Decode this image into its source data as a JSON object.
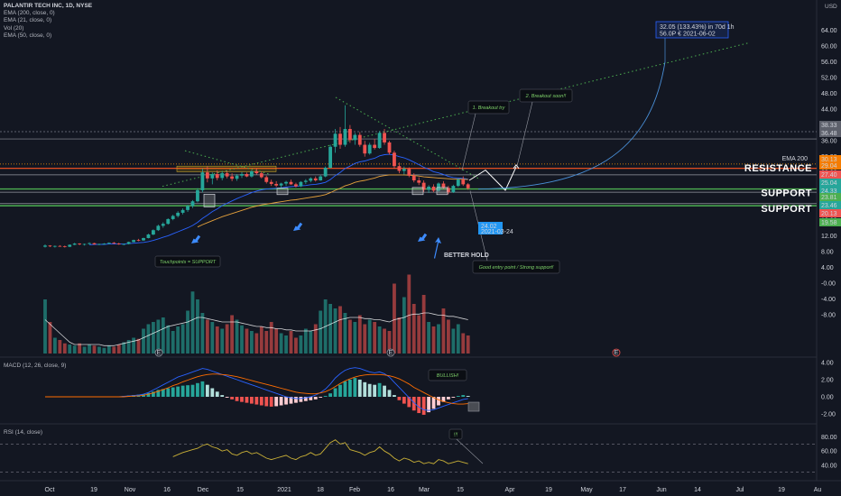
{
  "legend": {
    "title": "PALANTIR TECH INC, 1D, NYSE",
    "lines": [
      "EMA (200, close, 0)",
      "EMA (21, close, 0)",
      "Vol (20)",
      "EMA (50, close, 0)"
    ]
  },
  "currency": "USD",
  "macd_title": "MACD (12, 26, close, 9)",
  "rsi_title": "RSI (14, close)",
  "colors": {
    "up": "#26a69a",
    "down": "#ef5350",
    "bg": "#131722",
    "support": "#4caf50",
    "resistance": "#ff5722",
    "projection": "#4a90d9"
  },
  "chart_data": [
    {
      "type": "candlestick",
      "pane": "price",
      "y_ticks": [
        64.0,
        60.0,
        56.0,
        52.0,
        48.0,
        44.0,
        40.0,
        36.0,
        32.0,
        28.0,
        24.0,
        20.0,
        16.0,
        12.0,
        8.0,
        4.0,
        "-0.00",
        "-4.00",
        "-8.00"
      ],
      "x_ticks": [
        "Oct",
        "19",
        "Nov",
        "16",
        "Dec",
        "15",
        "2021",
        "18",
        "Feb",
        "16",
        "Mar",
        "15",
        "Apr",
        "19",
        "May",
        "17",
        "Jun",
        "14",
        "Jul",
        "19",
        "Au"
      ],
      "price_tags": [
        {
          "value": "38.33",
          "color": "#5d606b"
        },
        {
          "value": "36.48",
          "color": "#5d606b"
        },
        {
          "value": "30.13",
          "color": "#f57c00"
        },
        {
          "value": "29.04",
          "color": "#f57c00"
        },
        {
          "value": "27.40",
          "color": "#ef5350"
        },
        {
          "value": "25.04",
          "color": "#26a69a"
        },
        {
          "value": "24.33",
          "color": "#26a69a"
        },
        {
          "value": "23.81",
          "color": "#4caf50"
        },
        {
          "value": "23.46",
          "color": "#26a69a"
        },
        {
          "value": "20.13",
          "color": "#ef5350"
        },
        {
          "value": "19.58",
          "color": "#4caf50"
        }
      ],
      "zone_labels": {
        "resistance": "RESISTANCE",
        "support1": "SUPPORT",
        "support2": "SUPPORT"
      },
      "annotations": {
        "touchpoints": "Touchpoints = SUPPORT",
        "breakout1": "1. Breakout try",
        "breakout2": "2. Breakout soon!!",
        "good_entry": "Good entry point / Strong support!",
        "better_hold": "BETTER HOLD",
        "ema_badge": "EMA 200",
        "target_line1": "32.05 (133.43%) in 70d 1h",
        "target_line2": "56.0P € 2021-06-02",
        "current_price": "24.02",
        "current_date": "2021-03-24",
        "earnings": "E"
      },
      "candles": [
        [
          9.2,
          9.8,
          9.0,
          9.5
        ],
        [
          9.5,
          9.6,
          9.1,
          9.3
        ],
        [
          9.3,
          9.5,
          9.0,
          9.4
        ],
        [
          9.4,
          9.6,
          9.2,
          9.3
        ],
        [
          9.3,
          9.5,
          9.0,
          9.2
        ],
        [
          9.2,
          9.8,
          9.1,
          9.7
        ],
        [
          9.7,
          10.2,
          9.6,
          10.0
        ],
        [
          10.0,
          10.1,
          9.6,
          9.8
        ],
        [
          9.8,
          10.0,
          9.5,
          9.9
        ],
        [
          9.9,
          10.3,
          9.8,
          10.1
        ],
        [
          10.1,
          10.2,
          9.7,
          9.8
        ],
        [
          9.8,
          10.0,
          9.6,
          9.9
        ],
        [
          9.9,
          10.1,
          9.7,
          10.0
        ],
        [
          10.0,
          10.3,
          9.8,
          10.2
        ],
        [
          10.2,
          10.4,
          9.9,
          10.0
        ],
        [
          10.0,
          10.2,
          9.7,
          9.8
        ],
        [
          9.8,
          10.0,
          9.6,
          9.9
        ],
        [
          9.9,
          10.5,
          9.8,
          10.4
        ],
        [
          10.4,
          11.0,
          10.3,
          10.9
        ],
        [
          10.9,
          11.2,
          10.6,
          10.8
        ],
        [
          10.8,
          11.5,
          10.7,
          11.4
        ],
        [
          11.4,
          12.5,
          11.3,
          12.3
        ],
        [
          12.3,
          13.6,
          12.1,
          13.4
        ],
        [
          13.4,
          14.8,
          13.2,
          14.5
        ],
        [
          14.5,
          15.4,
          14.0,
          15.0
        ],
        [
          15.0,
          16.4,
          14.8,
          16.2
        ],
        [
          16.2,
          17.3,
          15.9,
          17.0
        ],
        [
          17.0,
          18.2,
          16.6,
          17.8
        ],
        [
          17.8,
          18.9,
          17.4,
          18.5
        ],
        [
          18.5,
          19.8,
          18.0,
          19.5
        ],
        [
          19.5,
          21.0,
          19.0,
          20.7
        ],
        [
          20.7,
          24.0,
          20.4,
          23.5
        ],
        [
          23.5,
          29.0,
          23.0,
          28.0
        ],
        [
          28.0,
          29.5,
          25.5,
          26.5
        ],
        [
          26.5,
          28.0,
          25.0,
          27.6
        ],
        [
          27.6,
          28.5,
          26.0,
          26.6
        ],
        [
          26.6,
          28.2,
          26.0,
          27.8
        ],
        [
          27.8,
          28.4,
          26.5,
          27.0
        ],
        [
          27.0,
          27.8,
          25.8,
          26.4
        ],
        [
          26.4,
          27.6,
          25.9,
          27.2
        ],
        [
          27.2,
          28.1,
          26.6,
          27.6
        ],
        [
          27.6,
          28.0,
          26.8,
          27.0
        ],
        [
          27.0,
          28.6,
          26.7,
          28.3
        ],
        [
          28.3,
          29.0,
          27.5,
          27.8
        ],
        [
          27.8,
          28.2,
          26.5,
          26.8
        ],
        [
          26.8,
          27.2,
          25.2,
          25.6
        ],
        [
          25.6,
          26.2,
          24.6,
          25.1
        ],
        [
          25.1,
          25.8,
          24.3,
          24.7
        ],
        [
          24.7,
          25.4,
          24.0,
          25.2
        ],
        [
          25.2,
          25.9,
          24.6,
          25.6
        ],
        [
          25.6,
          26.2,
          24.9,
          25.0
        ],
        [
          25.0,
          25.4,
          24.2,
          24.5
        ],
        [
          24.5,
          25.8,
          24.3,
          25.6
        ],
        [
          25.6,
          26.3,
          25.1,
          25.9
        ],
        [
          25.9,
          26.8,
          25.5,
          26.5
        ],
        [
          26.5,
          27.0,
          25.7,
          26.0
        ],
        [
          26.0,
          27.4,
          25.9,
          27.0
        ],
        [
          27.0,
          29.5,
          26.8,
          29.2
        ],
        [
          29.2,
          35.0,
          29.0,
          34.5
        ],
        [
          34.5,
          39.0,
          33.0,
          37.8
        ],
        [
          37.8,
          39.5,
          34.0,
          35.0
        ],
        [
          35.0,
          45.0,
          34.5,
          39.0
        ],
        [
          39.0,
          40.0,
          35.5,
          36.2
        ],
        [
          36.2,
          38.0,
          35.0,
          37.5
        ],
        [
          37.5,
          38.2,
          34.5,
          35.0
        ],
        [
          35.0,
          36.0,
          32.0,
          32.8
        ],
        [
          32.8,
          35.5,
          32.5,
          35.0
        ],
        [
          35.0,
          36.5,
          33.8,
          34.2
        ],
        [
          34.2,
          38.5,
          34.0,
          38.0
        ],
        [
          38.0,
          39.0,
          35.0,
          35.6
        ],
        [
          35.6,
          36.0,
          32.5,
          33.0
        ],
        [
          33.0,
          33.5,
          29.0,
          29.6
        ],
        [
          29.6,
          30.5,
          27.8,
          28.4
        ],
        [
          28.4,
          29.5,
          27.5,
          28.9
        ],
        [
          28.9,
          29.3,
          26.8,
          27.2
        ],
        [
          27.2,
          27.8,
          25.5,
          26.0
        ],
        [
          26.0,
          26.8,
          24.8,
          25.4
        ],
        [
          25.4,
          26.0,
          23.0,
          23.6
        ],
        [
          23.6,
          24.8,
          22.8,
          24.4
        ],
        [
          24.4,
          25.0,
          23.0,
          23.4
        ],
        [
          23.4,
          25.5,
          23.1,
          25.2
        ],
        [
          25.2,
          25.8,
          23.8,
          24.1
        ],
        [
          24.1,
          24.6,
          22.5,
          23.0
        ],
        [
          23.0,
          24.9,
          22.8,
          24.6
        ],
        [
          24.6,
          26.5,
          24.3,
          26.2
        ],
        [
          26.2,
          27.0,
          24.6,
          25.0
        ],
        [
          25.0,
          25.3,
          23.6,
          24.0
        ]
      ],
      "volume": [
        48,
        28,
        14,
        12,
        9,
        8,
        7,
        9,
        6,
        8,
        7,
        6,
        5,
        7,
        6,
        8,
        10,
        12,
        14,
        13,
        22,
        26,
        28,
        30,
        32,
        25,
        20,
        24,
        26,
        38,
        55,
        48,
        36,
        30,
        28,
        24,
        22,
        26,
        34,
        30,
        25,
        22,
        20,
        18,
        24,
        20,
        28,
        22,
        18,
        16,
        20,
        14,
        16,
        22,
        20,
        26,
        38,
        48,
        44,
        40,
        42,
        36,
        30,
        28,
        34,
        26,
        30,
        28,
        24,
        22,
        20,
        62,
        32,
        50,
        70,
        44,
        34,
        52,
        28,
        24,
        26,
        40,
        30,
        22,
        26,
        18,
        16
      ],
      "volume_ma": [
        30,
        26,
        22,
        18,
        14,
        10,
        8,
        8,
        8,
        8,
        8,
        8,
        7,
        7,
        7,
        8,
        9,
        10,
        11,
        12,
        14,
        16,
        18,
        20,
        22,
        24,
        25,
        26,
        27,
        28,
        30,
        32,
        32,
        31,
        30,
        29,
        28,
        28,
        28,
        28,
        27,
        26,
        25,
        24,
        24,
        23,
        23,
        22,
        22,
        21,
        21,
        20,
        20,
        20,
        20,
        21,
        22,
        24,
        26,
        28,
        30,
        31,
        32,
        32,
        32,
        31,
        31,
        30,
        30,
        29,
        28,
        30,
        31,
        32,
        34,
        35,
        35,
        36,
        36,
        35,
        34,
        34,
        33,
        33,
        32,
        31,
        30
      ],
      "ema21": [
        null,
        null,
        null,
        null,
        null,
        null,
        null,
        null,
        null,
        9.7,
        9.8,
        9.8,
        9.8,
        9.9,
        9.9,
        9.9,
        9.9,
        10.0,
        10.1,
        10.2,
        10.3,
        10.5,
        10.8,
        11.2,
        11.6,
        12.0,
        12.5,
        13.0,
        13.5,
        14.0,
        14.6,
        15.4,
        16.4,
        17.2,
        18.1,
        18.8,
        19.6,
        20.2,
        20.8,
        21.4,
        21.9,
        22.4,
        22.9,
        23.3,
        23.6,
        23.8,
        23.9,
        24.0,
        24.1,
        24.3,
        24.4,
        24.5,
        24.6,
        24.7,
        24.9,
        25.0,
        25.2,
        25.5,
        26.2,
        27.2,
        28.0,
        29.0,
        29.6,
        30.3,
        30.7,
        30.9,
        31.3,
        31.6,
        32.2,
        32.5,
        32.6,
        32.4,
        32.0,
        31.7,
        31.2,
        30.6,
        30.0,
        29.3,
        28.8,
        28.2,
        27.9,
        27.5,
        27.0,
        26.7,
        26.6,
        26.5,
        26.3
      ],
      "ema50": [
        null,
        null,
        null,
        null,
        null,
        null,
        null,
        null,
        null,
        null,
        null,
        null,
        null,
        null,
        null,
        null,
        null,
        null,
        null,
        null,
        null,
        null,
        null,
        null,
        null,
        null,
        null,
        null,
        null,
        null,
        null,
        14.2,
        14.8,
        15.3,
        15.8,
        16.3,
        16.8,
        17.2,
        17.6,
        18.0,
        18.4,
        18.8,
        19.2,
        19.5,
        19.8,
        20.0,
        20.2,
        20.4,
        20.6,
        20.8,
        21.0,
        21.1,
        21.3,
        21.5,
        21.7,
        21.9,
        22.1,
        22.4,
        22.9,
        23.5,
        24.0,
        24.6,
        25.0,
        25.5,
        25.8,
        26.0,
        26.3,
        26.6,
        27.0,
        27.2,
        27.4,
        27.4,
        27.4,
        27.4,
        27.3,
        27.2,
        27.1,
        26.9,
        26.8,
        26.7,
        26.6,
        26.5,
        26.4,
        26.3,
        26.3,
        26.3,
        26.2
      ],
      "macd_hist": [
        0,
        0,
        0,
        0,
        0,
        0,
        0,
        0,
        0,
        0,
        0,
        0,
        0,
        0,
        0,
        0,
        0.1,
        0.15,
        0.2,
        0.25,
        0.3,
        0.45,
        0.6,
        0.8,
        0.9,
        1.0,
        1.1,
        1.2,
        1.3,
        1.35,
        1.4,
        1.6,
        1.8,
        1.4,
        1.0,
        0.6,
        0.2,
        -0.1,
        -0.3,
        -0.5,
        -0.6,
        -0.7,
        -0.8,
        -0.9,
        -1.0,
        -1.1,
        -1.15,
        -1.1,
        -1.0,
        -0.9,
        -0.8,
        -0.7,
        -0.6,
        -0.5,
        -0.4,
        -0.3,
        -0.1,
        0.1,
        0.4,
        1.0,
        1.4,
        1.8,
        2.0,
        2.2,
        2.0,
        1.7,
        1.5,
        1.4,
        1.6,
        1.3,
        0.8,
        0.2,
        -0.4,
        -0.8,
        -1.2,
        -1.6,
        -1.9,
        -2.1,
        -1.8,
        -1.4,
        -1.0,
        -0.6,
        -0.3,
        -0.1,
        0.1,
        0.2,
        0.1
      ],
      "macd_line": [
        0,
        0,
        0,
        0,
        0,
        0,
        0,
        0,
        0,
        0,
        0,
        0,
        0,
        0,
        0,
        0,
        0.05,
        0.1,
        0.15,
        0.2,
        0.3,
        0.5,
        0.8,
        1.1,
        1.4,
        1.7,
        2.0,
        2.3,
        2.5,
        2.7,
        2.9,
        3.1,
        3.3,
        3.2,
        3.0,
        2.8,
        2.6,
        2.4,
        2.2,
        2.0,
        1.8,
        1.6,
        1.4,
        1.2,
        1.0,
        0.8,
        0.6,
        0.4,
        0.2,
        0.0,
        -0.1,
        -0.2,
        -0.2,
        -0.1,
        0.0,
        0.2,
        0.5,
        0.9,
        1.5,
        2.2,
        2.7,
        3.1,
        3.3,
        3.4,
        3.3,
        3.1,
        2.9,
        2.8,
        2.9,
        2.7,
        2.3,
        1.7,
        1.1,
        0.5,
        -0.1,
        -0.7,
        -1.2,
        -1.5,
        -1.6,
        -1.5,
        -1.3,
        -1.1,
        -0.9,
        -0.7,
        -0.5,
        -0.3,
        -0.2
      ],
      "macd_signal": [
        0,
        0,
        0,
        0,
        0,
        0,
        0,
        0,
        0,
        0,
        0,
        0,
        0,
        0,
        0,
        0,
        0,
        0.05,
        0.08,
        0.12,
        0.18,
        0.3,
        0.45,
        0.65,
        0.85,
        1.05,
        1.3,
        1.5,
        1.75,
        1.95,
        2.15,
        2.35,
        2.5,
        2.6,
        2.65,
        2.65,
        2.6,
        2.55,
        2.45,
        2.35,
        2.2,
        2.05,
        1.9,
        1.75,
        1.6,
        1.45,
        1.3,
        1.15,
        1.0,
        0.85,
        0.7,
        0.55,
        0.45,
        0.4,
        0.35,
        0.35,
        0.45,
        0.6,
        0.85,
        1.2,
        1.55,
        1.85,
        2.1,
        2.3,
        2.45,
        2.55,
        2.6,
        2.6,
        2.6,
        2.55,
        2.45,
        2.3,
        2.1,
        1.8,
        1.5,
        1.1,
        0.8,
        0.5,
        0.2,
        -0.1,
        -0.35,
        -0.55,
        -0.7,
        -0.8,
        -0.85,
        -0.85,
        -0.8
      ],
      "macd_ticks": [
        "4.00",
        "2.00",
        "0.00",
        "-2.00"
      ],
      "rsi": [
        null,
        null,
        null,
        null,
        null,
        null,
        null,
        null,
        null,
        null,
        null,
        null,
        null,
        null,
        null,
        null,
        null,
        null,
        null,
        null,
        null,
        null,
        null,
        null,
        null,
        null,
        52,
        55,
        58,
        60,
        62,
        64,
        68,
        70,
        66,
        64,
        60,
        62,
        56,
        54,
        58,
        60,
        56,
        58,
        54,
        50,
        48,
        50,
        52,
        54,
        50,
        48,
        52,
        54,
        58,
        54,
        56,
        64,
        72,
        76,
        70,
        72,
        62,
        60,
        58,
        54,
        58,
        60,
        66,
        60,
        56,
        50,
        46,
        50,
        48,
        44,
        46,
        42,
        44,
        42,
        48,
        46,
        42,
        44,
        46,
        44,
        42
      ],
      "rsi_ticks": [
        "80.00",
        "60.00",
        "40.00"
      ],
      "rsi_note": "!!!"
    }
  ]
}
